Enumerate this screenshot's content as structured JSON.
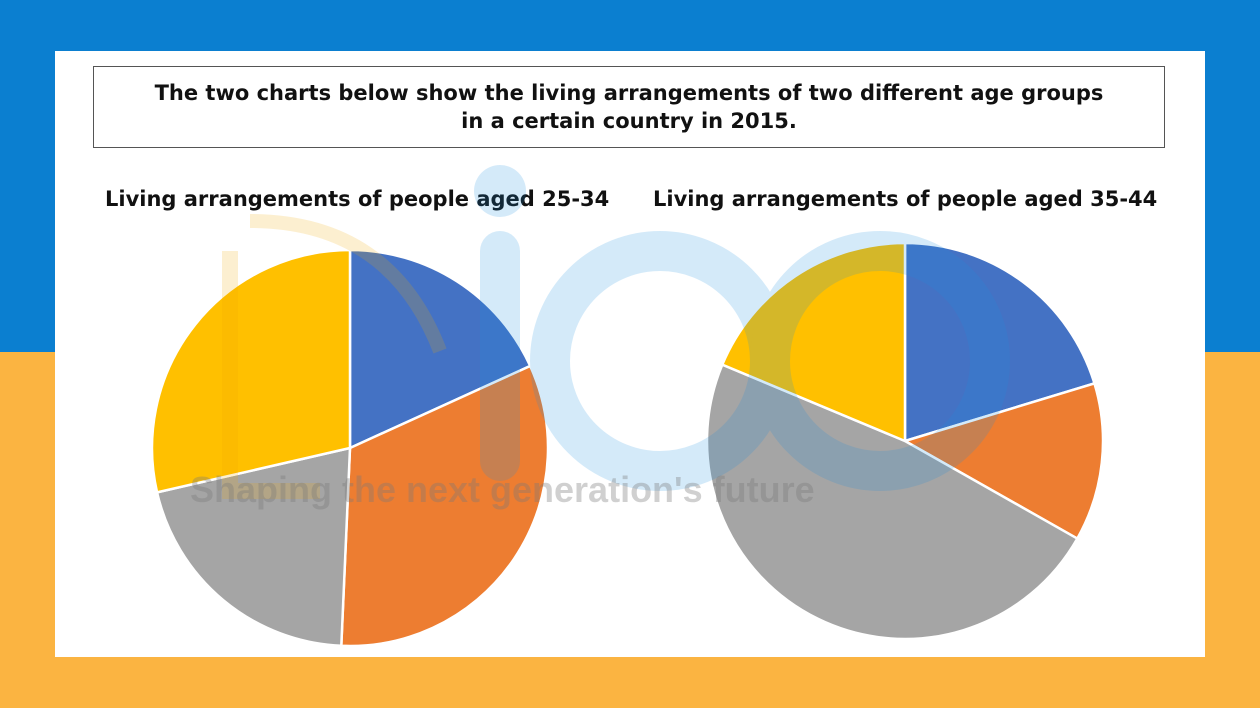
{
  "colors": {
    "bg_top": "#0b7fd0",
    "bg_bottom": "#fbb441",
    "card": "#ffffff",
    "slice_blue": "#4472c4",
    "slice_orange": "#ed7d31",
    "slice_gray": "#a5a5a5",
    "slice_yellow": "#ffc000"
  },
  "header": {
    "line1": "The two charts below show the living arrangements of two different age groups",
    "line2": "in a certain country in 2015."
  },
  "watermark": {
    "text": "Shaping the next generation's future"
  },
  "chart_data": [
    {
      "type": "pie",
      "title": "Living arrangements of people aged 25-34",
      "slices": [
        {
          "value": 18.2,
          "color": "#4472c4"
        },
        {
          "value": 32.5,
          "color": "#ed7d31"
        },
        {
          "value": 20.7,
          "color": "#a5a5a5"
        },
        {
          "value": 28.6,
          "color": "#ffc000"
        }
      ],
      "start_angle_deg": 0,
      "legend": "none"
    },
    {
      "type": "pie",
      "title": "Living arrangements of people aged 35-44",
      "slices": [
        {
          "value": 20.3,
          "color": "#4472c4"
        },
        {
          "value": 12.9,
          "color": "#ed7d31"
        },
        {
          "value": 48.1,
          "color": "#a5a5a5"
        },
        {
          "value": 18.7,
          "color": "#ffc000"
        }
      ],
      "start_angle_deg": 0,
      "legend": "none"
    }
  ]
}
